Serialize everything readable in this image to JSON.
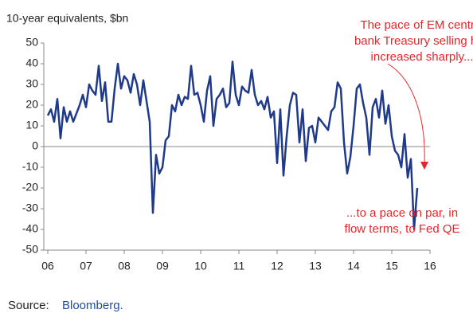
{
  "chart_data": {
    "type": "line",
    "subtitle": "10-year equivalents, $bn",
    "annotations": [
      {
        "lines": [
          "The pace of EM central",
          "bank Treasury selling has",
          "increased sharply..."
        ],
        "color": "#e8262a"
      },
      {
        "lines": [
          "...to a pace on par, in",
          "flow terms, to Fed QE"
        ],
        "color": "#e8262a"
      }
    ],
    "source_label": "Source:",
    "source_name": "Bloomberg.",
    "x": [
      2006,
      2006.083,
      2006.167,
      2006.25,
      2006.333,
      2006.417,
      2006.5,
      2006.583,
      2006.667,
      2006.75,
      2006.833,
      2006.917,
      2007,
      2007.083,
      2007.167,
      2007.25,
      2007.333,
      2007.417,
      2007.5,
      2007.583,
      2007.667,
      2007.75,
      2007.833,
      2007.917,
      2008,
      2008.083,
      2008.167,
      2008.25,
      2008.333,
      2008.417,
      2008.5,
      2008.583,
      2008.667,
      2008.75,
      2008.833,
      2008.917,
      2009,
      2009.083,
      2009.167,
      2009.25,
      2009.333,
      2009.417,
      2009.5,
      2009.583,
      2009.667,
      2009.75,
      2009.833,
      2009.917,
      2010,
      2010.083,
      2010.167,
      2010.25,
      2010.333,
      2010.417,
      2010.5,
      2010.583,
      2010.667,
      2010.75,
      2010.833,
      2010.917,
      2011,
      2011.083,
      2011.167,
      2011.25,
      2011.333,
      2011.417,
      2011.5,
      2011.583,
      2011.667,
      2011.75,
      2011.833,
      2011.917,
      2012,
      2012.083,
      2012.167,
      2012.25,
      2012.333,
      2012.417,
      2012.5,
      2012.583,
      2012.667,
      2012.75,
      2012.833,
      2012.917,
      2013,
      2013.083,
      2013.167,
      2013.25,
      2013.333,
      2013.417,
      2013.5,
      2013.583,
      2013.667,
      2013.75,
      2013.833,
      2013.917,
      2014,
      2014.083,
      2014.167,
      2014.25,
      2014.333,
      2014.417,
      2014.5,
      2014.583,
      2014.667,
      2014.75,
      2014.833,
      2014.917,
      2015,
      2015.083,
      2015.167,
      2015.25,
      2015.333,
      2015.417,
      2015.5,
      2015.583,
      2015.667
    ],
    "series": [
      {
        "color": "#1f3a8a",
        "values": [
          15,
          18,
          12,
          23,
          4,
          19,
          12,
          17,
          12,
          16,
          20,
          25,
          19,
          30,
          27,
          25,
          39,
          22,
          31,
          12,
          12,
          28,
          40,
          28,
          34,
          32,
          26,
          35,
          30,
          20,
          32,
          22,
          12,
          -32,
          -4,
          -13,
          -10,
          3,
          5,
          20,
          17,
          25,
          20,
          24,
          23,
          39,
          25,
          26,
          20,
          12,
          27,
          34,
          10,
          23,
          25,
          28,
          19,
          21,
          41,
          25,
          20,
          29,
          27,
          26,
          37,
          25,
          20,
          22,
          18,
          24,
          14,
          17,
          -8,
          18,
          -14,
          5,
          20,
          26,
          25,
          2,
          18,
          -7,
          9,
          10,
          2,
          14,
          12,
          10,
          8,
          17,
          19,
          31,
          28,
          2,
          -13,
          -5,
          10,
          28,
          30,
          21,
          14,
          -4,
          19,
          23,
          14,
          27,
          11,
          20,
          5,
          -2,
          -4,
          -10,
          6,
          -15,
          -6,
          -40,
          -20
        ]
      }
    ],
    "xlim": [
      2006,
      2016
    ],
    "xticks": [
      {
        "value": 2006,
        "label": "06"
      },
      {
        "value": 2007,
        "label": "07"
      },
      {
        "value": 2008,
        "label": "08"
      },
      {
        "value": 2009,
        "label": "09"
      },
      {
        "value": 2010,
        "label": "10"
      },
      {
        "value": 2011,
        "label": "11"
      },
      {
        "value": 2012,
        "label": "12"
      },
      {
        "value": 2013,
        "label": "13"
      },
      {
        "value": 2014,
        "label": "14"
      },
      {
        "value": 2015,
        "label": "15"
      },
      {
        "value": 2016,
        "label": "16"
      }
    ],
    "ylim": [
      -50,
      50
    ],
    "yticks": [
      -50,
      -40,
      -30,
      -20,
      -10,
      0,
      10,
      20,
      30,
      40,
      50
    ]
  }
}
